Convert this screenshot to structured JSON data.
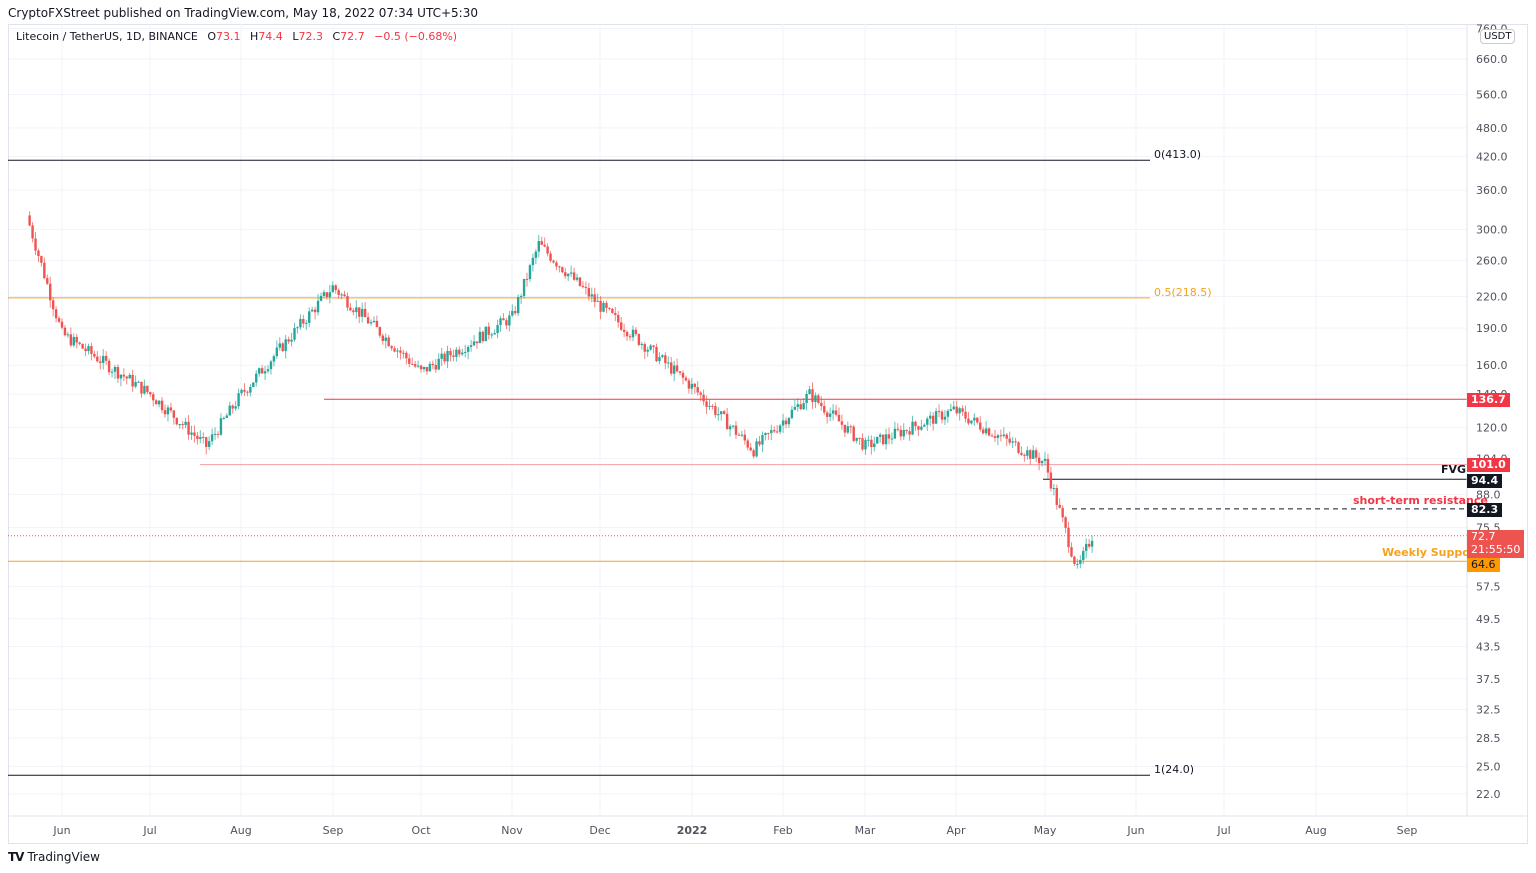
{
  "header": {
    "published": "CryptoFXStreet published on TradingView.com, May 18, 2022 07:34 UTC+5:30",
    "symbol": "Litecoin / TetherUS, 1D, BINANCE",
    "o_label": "O",
    "o": "73.1",
    "h_label": "H",
    "h": "74.4",
    "l_label": "L",
    "l": "72.3",
    "c_label": "C",
    "c": "72.7",
    "change": "−0.5 (−0.68%)"
  },
  "currency_badge": "USDT",
  "footer": {
    "brand": "TradingView",
    "logo": "TV"
  },
  "colors": {
    "up": "#26a69a",
    "down": "#ef5350",
    "fib": "#f7a21b",
    "resistance": "#f23645",
    "grid": "#f0f3fa"
  },
  "annotations": {
    "fib_0": "0(413.0)",
    "fib_05": "0.5(218.5)",
    "fib_1": "1(24.0)",
    "fvg": "FVG",
    "short_term_resistance": "short-term resistance",
    "weekly_support": "Weekly Support"
  },
  "price_tags": {
    "r1": "136.7",
    "r2": "101.0",
    "fvg_low": "94.4",
    "str": "82.3",
    "last": "72.7",
    "countdown": "21:55:50",
    "support": "64.6"
  },
  "chart_data": {
    "type": "candlestick",
    "title": "Litecoin / TetherUS, 1D, BINANCE",
    "xlabel": "",
    "ylabel": "USDT",
    "yscale": "log",
    "ylim": [
      20,
      760
    ],
    "y_ticks": [
      "760.0",
      "660.0",
      "560.0",
      "480.0",
      "420.0",
      "360.0",
      "300.0",
      "260.0",
      "220.0",
      "190.0",
      "160.0",
      "140.0",
      "120.0",
      "104.0",
      "88.0",
      "75.5",
      "57.5",
      "49.5",
      "43.5",
      "37.5",
      "32.5",
      "28.5",
      "25.0",
      "22.0"
    ],
    "x_ticks": [
      "Jun",
      "Jul",
      "Aug",
      "Sep",
      "Oct",
      "Nov",
      "Dec",
      "2022",
      "Feb",
      "Mar",
      "Apr",
      "May",
      "Jun",
      "Jul",
      "Aug",
      "Sep"
    ],
    "grid": true,
    "horizontal_levels": [
      {
        "label": "0(413.0)",
        "value": 413.0,
        "color": "#131722"
      },
      {
        "label": "0.5(218.5)",
        "value": 218.5,
        "color": "#f7a21b"
      },
      {
        "label": "1(24.0)",
        "value": 24.0,
        "color": "#131722"
      },
      {
        "label": "resistance",
        "value": 136.7,
        "color": "#f23645"
      },
      {
        "label": "resistance",
        "value": 101.0,
        "color": "#f23645"
      },
      {
        "label": "FVG",
        "value": 94.4,
        "color": "#131722"
      },
      {
        "label": "short-term resistance",
        "value": 82.3,
        "color": "#131722",
        "style": "dashed"
      },
      {
        "label": "Weekly Support",
        "value": 64.6,
        "color": "#f7a21b"
      }
    ],
    "monthly_close_approx": [
      {
        "date": "2021-05-20",
        "close": 320
      },
      {
        "date": "2021-06-01",
        "close": 185
      },
      {
        "date": "2021-07-01",
        "close": 140
      },
      {
        "date": "2021-07-20",
        "close": 110
      },
      {
        "date": "2021-08-01",
        "close": 140
      },
      {
        "date": "2021-09-01",
        "close": 230
      },
      {
        "date": "2021-10-01",
        "close": 155
      },
      {
        "date": "2021-11-01",
        "close": 200
      },
      {
        "date": "2021-11-10",
        "close": 280
      },
      {
        "date": "2021-12-01",
        "close": 210
      },
      {
        "date": "2022-01-01",
        "close": 145
      },
      {
        "date": "2022-01-22",
        "close": 108
      },
      {
        "date": "2022-02-10",
        "close": 140
      },
      {
        "date": "2022-03-01",
        "close": 110
      },
      {
        "date": "2022-03-31",
        "close": 130
      },
      {
        "date": "2022-05-01",
        "close": 102
      },
      {
        "date": "2022-05-12",
        "close": 62
      },
      {
        "date": "2022-05-17",
        "close": 72.7
      }
    ],
    "last": {
      "open": 73.1,
      "high": 74.4,
      "low": 72.3,
      "close": 72.7
    }
  }
}
